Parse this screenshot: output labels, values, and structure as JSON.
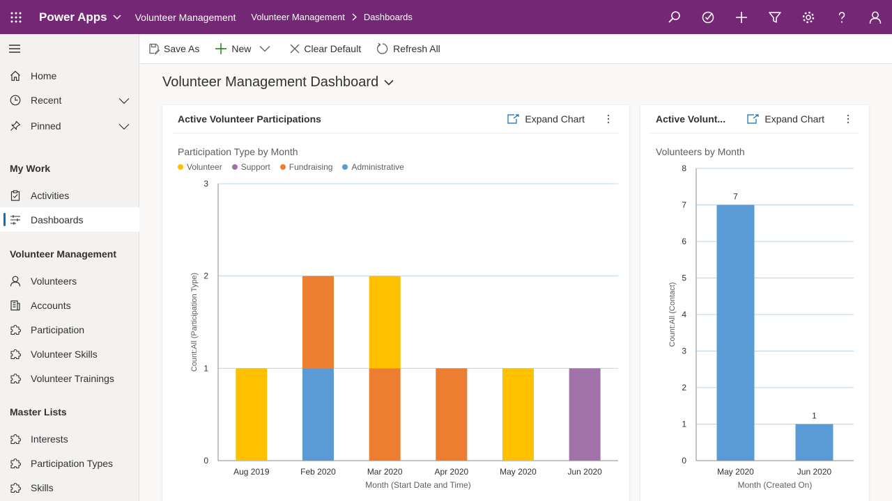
{
  "header": {
    "app_name": "Power Apps",
    "app_module": "Volunteer Management",
    "breadcrumb": [
      "Volunteer Management",
      "Dashboards"
    ]
  },
  "sidebar": {
    "items_top": [
      {
        "label": "Home",
        "icon": "home-icon"
      },
      {
        "label": "Recent",
        "icon": "clock-icon"
      },
      {
        "label": "Pinned",
        "icon": "pin-icon"
      }
    ],
    "section_my_work": "My Work",
    "my_work": [
      {
        "label": "Activities",
        "icon": "clipboard-icon"
      },
      {
        "label": "Dashboards",
        "icon": "dashboard-icon"
      }
    ],
    "section_volunteer": "Volunteer Management",
    "volunteer": [
      {
        "label": "Volunteers",
        "icon": "person-icon"
      },
      {
        "label": "Accounts",
        "icon": "building-icon"
      },
      {
        "label": "Participation",
        "icon": "puzzle-icon"
      },
      {
        "label": "Volunteer Skills",
        "icon": "puzzle-icon"
      },
      {
        "label": "Volunteer Trainings",
        "icon": "puzzle-icon"
      }
    ],
    "section_master": "Master Lists",
    "master": [
      {
        "label": "Interests",
        "icon": "puzzle-icon"
      },
      {
        "label": "Participation Types",
        "icon": "puzzle-icon"
      },
      {
        "label": "Skills",
        "icon": "puzzle-icon"
      }
    ]
  },
  "commands": {
    "save_as": "Save As",
    "new": "New",
    "clear_default": "Clear Default",
    "refresh_all": "Refresh All"
  },
  "dashboard": {
    "title": "Volunteer Management Dashboard"
  },
  "card1": {
    "title": "Active Volunteer Participations",
    "expand": "Expand Chart"
  },
  "card2": {
    "title": "Active Volunt...",
    "expand": "Expand Chart"
  },
  "colors": {
    "volunteer": "#ffc000",
    "support": "#a173aa",
    "fundraising": "#ed7d31",
    "administrative": "#5b9bd5",
    "contact": "#5b9bd5"
  },
  "chart_data": [
    {
      "type": "bar",
      "stacked": true,
      "title": "Participation Type by Month",
      "xlabel": "Month (Start Date and Time)",
      "ylabel": "Count:All (Participation Type)",
      "ylim": [
        0,
        3
      ],
      "yticks": [
        "0",
        "1",
        "2",
        "3"
      ],
      "categories": [
        "Aug 2019",
        "Feb 2020",
        "Mar 2020",
        "Apr 2020",
        "May 2020",
        "Jun 2020"
      ],
      "series": [
        {
          "name": "Volunteer",
          "key": "volunteer",
          "values": [
            1,
            0,
            1,
            0,
            1,
            0
          ]
        },
        {
          "name": "Support",
          "key": "support",
          "values": [
            0,
            0,
            0,
            0,
            0,
            1
          ]
        },
        {
          "name": "Fundraising",
          "key": "fundraising",
          "values": [
            0,
            1,
            1,
            1,
            0,
            0
          ]
        },
        {
          "name": "Administrative",
          "key": "administrative",
          "values": [
            0,
            1,
            0,
            0,
            0,
            0
          ]
        }
      ],
      "legend": "top-left"
    },
    {
      "type": "bar",
      "title": "Volunteers by Month",
      "xlabel": "Month (Created On)",
      "ylabel": "Count:All (Contact)",
      "ylim": [
        0,
        8
      ],
      "yticks": [
        "0",
        "1",
        "2",
        "3",
        "4",
        "5",
        "6",
        "7",
        "8"
      ],
      "categories": [
        "May 2020",
        "Jun 2020"
      ],
      "values": [
        7,
        1
      ],
      "data_labels": [
        "7",
        "1"
      ]
    }
  ]
}
